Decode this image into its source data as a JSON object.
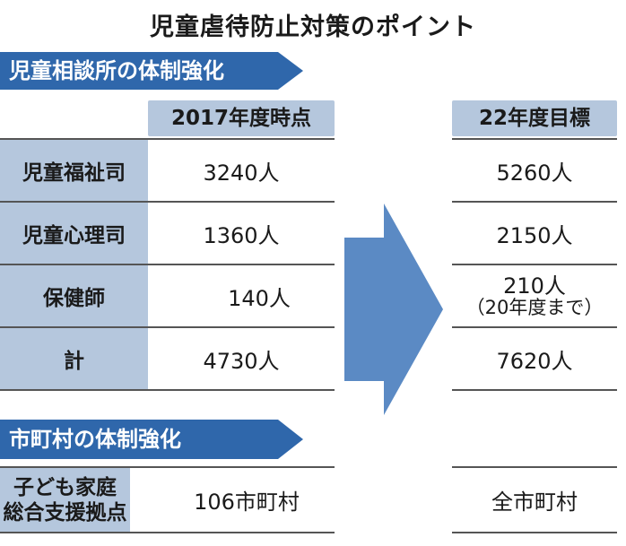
{
  "title": "児童虐待防止対策のポイント",
  "section1": {
    "banner": "児童相談所の体制強化",
    "col_current": "2017年度時点",
    "col_target": "22年度目標",
    "rows": [
      {
        "label": "児童福祉司",
        "current": "3240人",
        "target": "5260人",
        "note": ""
      },
      {
        "label": "児童心理司",
        "current": "1360人",
        "target": "2150人",
        "note": ""
      },
      {
        "label": "保健師",
        "current": "140人",
        "target": "210人",
        "note": "（20年度まで）"
      },
      {
        "label": "計",
        "current": "4730人",
        "target": "7620人",
        "note": ""
      }
    ]
  },
  "section2": {
    "banner": "市町村の体制強化",
    "row": {
      "label_line1": "子ども家庭",
      "label_line2": "総合支援拠点",
      "current": "106市町村",
      "target": "全市町村"
    }
  },
  "colors": {
    "banner": "#2f67ab",
    "label_bg": "#b5c7dd",
    "arrow": "#5b8ac4"
  },
  "arrow_icon": "right-arrow-icon"
}
